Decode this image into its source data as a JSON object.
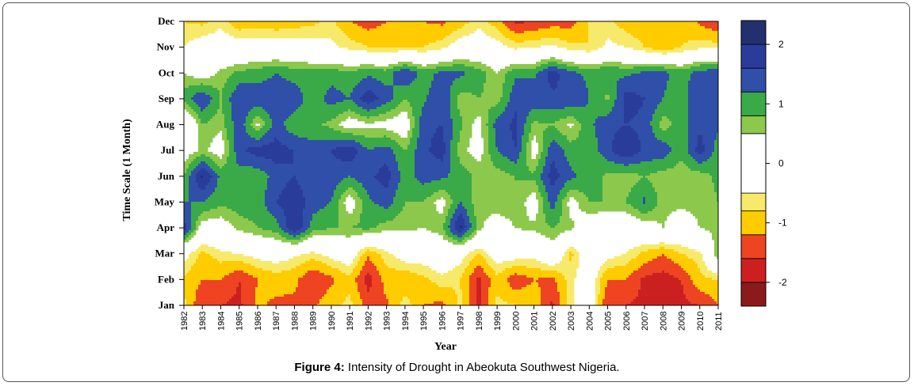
{
  "caption": {
    "label": "Figure 4:",
    "text": " Intensity of Drought in Abeokuta Southwest Nigeria."
  },
  "chart_data": {
    "type": "heatmap",
    "title": "",
    "xlabel": "Year",
    "ylabel": "Time Scale (1 Month)",
    "x": [
      "1982",
      "1983",
      "1984",
      "1985",
      "1986",
      "1987",
      "1988",
      "1989",
      "1990",
      "1991",
      "1992",
      "1993",
      "1994",
      "1995",
      "1996",
      "1997",
      "1998",
      "1999",
      "2000",
      "2001",
      "2002",
      "2003",
      "2004",
      "2005",
      "2006",
      "2007",
      "2008",
      "2009",
      "2010",
      "2011"
    ],
    "y": [
      "Jan",
      "Feb",
      "Mar",
      "Apr",
      "May",
      "Jun",
      "Jul",
      "Aug",
      "Sep",
      "Oct",
      "Nov",
      "Dec"
    ],
    "values": [
      [
        -0.7,
        -1.6,
        -1.6,
        -1.7,
        -1.1,
        -1.3,
        -1.3,
        -1.3,
        -0.9,
        -0.7,
        -1.4,
        -1.3,
        -0.6,
        -1.2,
        -1.3,
        -0.7,
        -1.7,
        -0.7,
        -0.8,
        -0.9,
        -1.7,
        -0.6,
        -0.1,
        -1.6,
        -1.6,
        -1.7,
        -1.8,
        -1.7,
        -1.6,
        -1.2
      ],
      [
        -0.9,
        -1.2,
        -1.2,
        -1.6,
        -1.2,
        -1.0,
        -1.1,
        -1.6,
        -1.3,
        -0.9,
        -1.8,
        -1.0,
        -1.1,
        -0.9,
        -0.6,
        -0.8,
        -1.7,
        -0.9,
        -1.5,
        -1.2,
        -1.3,
        -0.6,
        -0.1,
        -1.2,
        -1.2,
        -1.7,
        -1.8,
        -1.6,
        -0.9,
        -0.8
      ],
      [
        -0.3,
        -0.9,
        -0.6,
        -0.5,
        -0.3,
        -0.2,
        -0.4,
        -0.6,
        -0.3,
        -0.1,
        -1.1,
        -0.6,
        -0.2,
        -0.2,
        0.0,
        -0.3,
        -0.8,
        -0.2,
        -0.2,
        -0.3,
        0.2,
        -0.9,
        -0.1,
        -0.3,
        -0.5,
        -0.9,
        -1.2,
        -0.8,
        -0.6,
        0.8
      ],
      [
        1.8,
        0.2,
        0.2,
        0.6,
        0.8,
        1.0,
        2.0,
        1.0,
        0.8,
        0.8,
        0.9,
        0.6,
        0.6,
        0.5,
        0.7,
        2.1,
        0.6,
        0.1,
        0.5,
        0.6,
        0.8,
        0.6,
        0.1,
        0.0,
        0.0,
        0.2,
        0.5,
        0.2,
        0.5,
        0.6
      ],
      [
        1.2,
        1.2,
        0.9,
        1.0,
        1.0,
        1.6,
        1.9,
        1.4,
        1.2,
        0.2,
        1.1,
        1.4,
        0.8,
        0.8,
        0.3,
        1.2,
        0.6,
        0.8,
        0.8,
        0.2,
        1.4,
        0.3,
        0.8,
        0.8,
        0.8,
        1.3,
        0.6,
        0.6,
        0.6,
        0.8
      ],
      [
        0.8,
        2.1,
        1.1,
        1.0,
        0.9,
        1.4,
        1.6,
        1.3,
        1.5,
        1.2,
        1.5,
        1.8,
        1.0,
        1.4,
        1.3,
        1.0,
        0.7,
        0.6,
        0.8,
        0.9,
        1.8,
        1.3,
        1.0,
        0.7,
        0.6,
        0.8,
        0.6,
        0.6,
        0.6,
        0.9
      ],
      [
        0.2,
        0.6,
        0.2,
        1.5,
        1.8,
        1.8,
        1.6,
        1.4,
        1.6,
        1.9,
        1.2,
        1.4,
        0.8,
        1.5,
        1.8,
        0.6,
        0.3,
        1.2,
        1.6,
        0.2,
        1.5,
        1.0,
        0.9,
        1.5,
        2.0,
        1.5,
        1.5,
        0.9,
        1.8,
        1.0
      ],
      [
        -0.5,
        0.8,
        0.6,
        1.5,
        0.4,
        1.4,
        0.9,
        0.9,
        0.7,
        0.2,
        0.4,
        0.3,
        0.1,
        1.5,
        1.6,
        0.9,
        0.3,
        1.4,
        1.7,
        0.7,
        0.8,
        0.4,
        1.1,
        1.5,
        1.6,
        1.5,
        0.6,
        1.0,
        1.5,
        1.3
      ],
      [
        1.0,
        1.6,
        0.8,
        1.6,
        1.5,
        1.5,
        1.5,
        0.9,
        1.4,
        1.2,
        1.9,
        1.4,
        0.8,
        1.1,
        1.6,
        0.6,
        0.8,
        0.6,
        1.5,
        1.5,
        1.5,
        1.6,
        1.2,
        0.7,
        1.8,
        1.6,
        1.2,
        1.0,
        1.6,
        1.5
      ],
      [
        0.5,
        0.2,
        0.6,
        0.9,
        1.0,
        1.2,
        1.0,
        1.0,
        1.0,
        0.9,
        1.1,
        1.0,
        1.6,
        1.0,
        1.3,
        1.3,
        1.0,
        0.5,
        1.1,
        1.1,
        1.8,
        1.3,
        1.1,
        1.2,
        1.1,
        1.3,
        1.3,
        1.0,
        1.4,
        1.5
      ],
      [
        -0.5,
        -0.2,
        -0.2,
        -0.2,
        -0.2,
        -0.2,
        -0.2,
        -0.3,
        -0.4,
        -0.6,
        -0.8,
        -0.9,
        -0.8,
        -0.8,
        -0.6,
        -0.2,
        -0.2,
        -0.3,
        -0.6,
        -0.5,
        -0.4,
        -0.7,
        -0.8,
        -0.4,
        -0.5,
        -0.8,
        -1.1,
        -0.8,
        -0.6,
        -0.6
      ],
      [
        -0.8,
        -0.9,
        -0.6,
        -1.1,
        -1.0,
        -1.1,
        -1.0,
        -0.9,
        -0.7,
        -1.2,
        -1.4,
        -1.2,
        -1.1,
        -1.2,
        -1.3,
        -1.0,
        -0.6,
        -1.0,
        -1.7,
        -1.6,
        -1.4,
        -1.4,
        -0.8,
        -0.7,
        -1.0,
        -1.1,
        -0.9,
        -0.9,
        -1.3,
        -1.6
      ]
    ],
    "levels": [
      -2.4,
      -2.0,
      -1.6,
      -1.2,
      -0.8,
      -0.5,
      0.5,
      0.8,
      1.2,
      1.6,
      2.0,
      2.4
    ],
    "level_colors": [
      "#8b1a1a",
      "#cc2020",
      "#ee4422",
      "#ffcc00",
      "#f7ea6a",
      "#ffffff",
      "#8cc84b",
      "#3aaa48",
      "#2f4fa8",
      "#2a3c9a",
      "#233070"
    ],
    "legend_ticks": [
      "2",
      "1",
      "0",
      "-1",
      "-2"
    ],
    "legend_tick_values": [
      2,
      1,
      0,
      -1,
      -2
    ]
  }
}
